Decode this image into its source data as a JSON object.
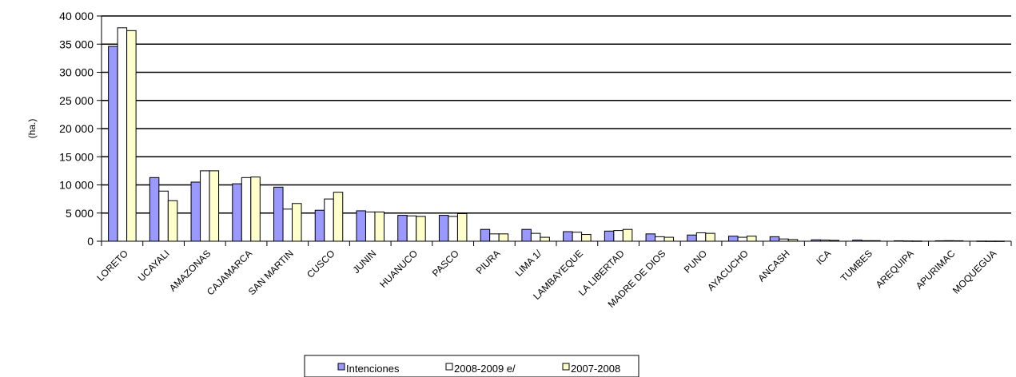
{
  "chart_data": {
    "type": "bar",
    "title": "",
    "xlabel": "",
    "ylabel": "(ha.)",
    "ylim": [
      0,
      40000
    ],
    "yticks": [
      0,
      5000,
      10000,
      15000,
      20000,
      25000,
      30000,
      35000,
      40000
    ],
    "ytick_labels": [
      "0",
      "5 000",
      "10 000",
      "15 000",
      "20 000",
      "25 000",
      "30 000",
      "35 000",
      "40 000"
    ],
    "grid": true,
    "legend_position": "bottom",
    "categories": [
      "LORETO",
      "UCAYALI",
      "AMAZONAS",
      "CAJAMARCA",
      "SAN MARTIN",
      "CUSCO",
      "JUNIN",
      "HUANUCO",
      "PASCO",
      "PIURA",
      "LIMA 1/",
      "LAMBAYEQUE",
      "LA LIBERTAD",
      "MADRE DE DIOS",
      "PUNO",
      "AYACUCHO",
      "ANCASH",
      "ICA",
      "TUMBES",
      "AREQUIPA",
      "APURIMAC",
      "MOQUEGUA"
    ],
    "series": [
      {
        "name": "Intenciones",
        "color": "#9999ff",
        "values": [
          34600,
          11300,
          10500,
          10200,
          9600,
          5500,
          5400,
          4600,
          4600,
          2100,
          2100,
          1700,
          1800,
          1300,
          1100,
          900,
          800,
          250,
          200,
          80,
          80,
          30
        ]
      },
      {
        "name": "2008-2009 e/",
        "color": "#ffffff",
        "values": [
          37900,
          8900,
          12500,
          11300,
          5700,
          7500,
          5200,
          4500,
          4400,
          1300,
          1400,
          1600,
          1900,
          800,
          1500,
          700,
          400,
          200,
          100,
          50,
          100,
          20
        ]
      },
      {
        "name": "2007-2008",
        "color": "#ffffcc",
        "values": [
          37400,
          7200,
          12500,
          11400,
          6700,
          8700,
          5200,
          4400,
          4900,
          1300,
          700,
          1200,
          2100,
          700,
          1400,
          900,
          300,
          150,
          100,
          40,
          80,
          20
        ]
      }
    ]
  }
}
